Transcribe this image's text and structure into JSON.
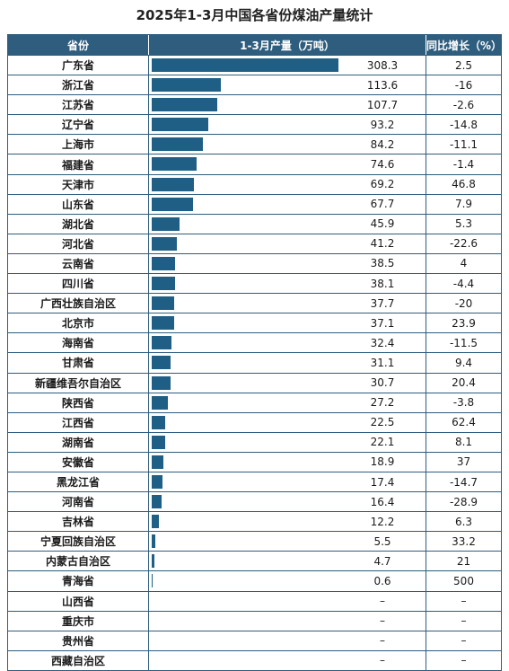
{
  "chart_data": {
    "type": "table",
    "title": "2025年1-3月中国各省份煤油产量统计",
    "columns": [
      "省份",
      "1-3月产量（万吨）",
      "同比增长（%）"
    ],
    "rows": [
      {
        "province": "广东省",
        "value": 308.3,
        "value_text": "308.3",
        "growth": "2.5"
      },
      {
        "province": "浙江省",
        "value": 113.6,
        "value_text": "113.6",
        "growth": "-16"
      },
      {
        "province": "江苏省",
        "value": 107.7,
        "value_text": "107.7",
        "growth": "-2.6"
      },
      {
        "province": "辽宁省",
        "value": 93.2,
        "value_text": "93.2",
        "growth": "-14.8"
      },
      {
        "province": "上海市",
        "value": 84.2,
        "value_text": "84.2",
        "growth": "-11.1"
      },
      {
        "province": "福建省",
        "value": 74.6,
        "value_text": "74.6",
        "growth": "-1.4"
      },
      {
        "province": "天津市",
        "value": 69.2,
        "value_text": "69.2",
        "growth": "46.8"
      },
      {
        "province": "山东省",
        "value": 67.7,
        "value_text": "67.7",
        "growth": "7.9"
      },
      {
        "province": "湖北省",
        "value": 45.9,
        "value_text": "45.9",
        "growth": "5.3"
      },
      {
        "province": "河北省",
        "value": 41.2,
        "value_text": "41.2",
        "growth": "-22.6"
      },
      {
        "province": "云南省",
        "value": 38.5,
        "value_text": "38.5",
        "growth": "4"
      },
      {
        "province": "四川省",
        "value": 38.1,
        "value_text": "38.1",
        "growth": "-4.4"
      },
      {
        "province": "广西壮族自治区",
        "value": 37.7,
        "value_text": "37.7",
        "growth": "-20"
      },
      {
        "province": "北京市",
        "value": 37.1,
        "value_text": "37.1",
        "growth": "23.9"
      },
      {
        "province": "海南省",
        "value": 32.4,
        "value_text": "32.4",
        "growth": "-11.5"
      },
      {
        "province": "甘肃省",
        "value": 31.1,
        "value_text": "31.1",
        "growth": "9.4"
      },
      {
        "province": "新疆维吾尔自治区",
        "value": 30.7,
        "value_text": "30.7",
        "growth": "20.4"
      },
      {
        "province": "陕西省",
        "value": 27.2,
        "value_text": "27.2",
        "growth": "-3.8"
      },
      {
        "province": "江西省",
        "value": 22.5,
        "value_text": "22.5",
        "growth": "62.4"
      },
      {
        "province": "湖南省",
        "value": 22.1,
        "value_text": "22.1",
        "growth": "8.1"
      },
      {
        "province": "安徽省",
        "value": 18.9,
        "value_text": "18.9",
        "growth": "37"
      },
      {
        "province": "黑龙江省",
        "value": 17.4,
        "value_text": "17.4",
        "growth": "-14.7"
      },
      {
        "province": "河南省",
        "value": 16.4,
        "value_text": "16.4",
        "growth": "-28.9"
      },
      {
        "province": "吉林省",
        "value": 12.2,
        "value_text": "12.2",
        "growth": "6.3"
      },
      {
        "province": "宁夏回族自治区",
        "value": 5.5,
        "value_text": "5.5",
        "growth": "33.2"
      },
      {
        "province": "内蒙古自治区",
        "value": 4.7,
        "value_text": "4.7",
        "growth": "21"
      },
      {
        "province": "青海省",
        "value": 0.6,
        "value_text": "0.6",
        "growth": "500"
      },
      {
        "province": "山西省",
        "value": null,
        "value_text": "–",
        "growth": "–"
      },
      {
        "province": "重庆市",
        "value": null,
        "value_text": "–",
        "growth": "–"
      },
      {
        "province": "贵州省",
        "value": null,
        "value_text": "–",
        "growth": "–"
      },
      {
        "province": "西藏自治区",
        "value": null,
        "value_text": "–",
        "growth": "–"
      }
    ],
    "bar_color": "#1f5f86",
    "header_color": "#2f5d7e"
  }
}
